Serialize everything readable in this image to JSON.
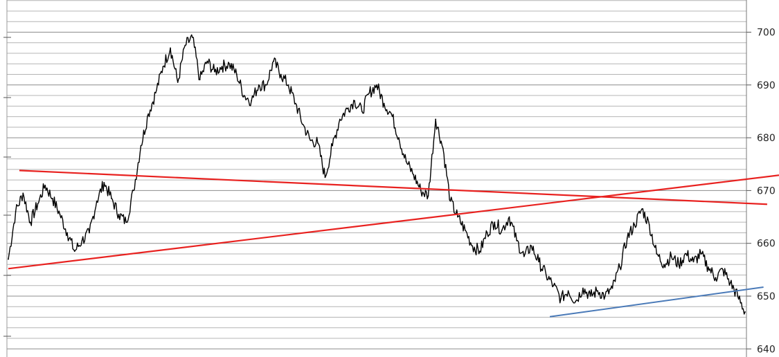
{
  "chart_data": {
    "type": "line",
    "title": "",
    "xlabel": "",
    "ylabel": "",
    "ylim": [
      640,
      706
    ],
    "y_ticks": [
      640,
      650,
      660,
      670,
      680,
      690,
      700
    ],
    "y_tick_labels": [
      "640",
      "650",
      "660",
      "670",
      "680",
      "690",
      "700"
    ],
    "grid": true,
    "legend": "none",
    "colors": {
      "price": "#000000",
      "resistance_line": "#e8211f",
      "support_line": "#e8211f",
      "trend_line": "#4a7ab8",
      "grid_major": "#8c8c8c",
      "grid_minor": "#b4b4b4"
    },
    "x_index_range": [
      0,
      100
    ],
    "series": [
      {
        "values": [
          [
            0,
            657.0
          ],
          [
            1,
            666.0
          ],
          [
            2,
            669.5
          ],
          [
            3,
            664.0
          ],
          [
            4,
            667.5
          ],
          [
            5,
            671.0
          ],
          [
            6,
            668.5
          ],
          [
            7,
            665.5
          ],
          [
            8,
            662.0
          ],
          [
            9,
            658.5
          ],
          [
            10,
            660.5
          ],
          [
            11,
            662.0
          ],
          [
            12,
            668.0
          ],
          [
            13,
            671.5
          ],
          [
            14,
            668.5
          ],
          [
            15,
            665.5
          ],
          [
            16,
            664.0
          ],
          [
            17,
            670.0
          ],
          [
            18,
            678.5
          ],
          [
            19,
            684.5
          ],
          [
            20,
            688.5
          ],
          [
            21,
            693.5
          ],
          [
            22,
            697.0
          ],
          [
            23,
            690.5
          ],
          [
            24,
            697.5
          ],
          [
            25,
            699.0
          ],
          [
            26,
            691.0
          ],
          [
            27,
            694.5
          ],
          [
            28,
            692.5
          ],
          [
            29,
            693.5
          ],
          [
            30,
            694.0
          ],
          [
            31,
            692.0
          ],
          [
            32,
            688.0
          ],
          [
            33,
            687.0
          ],
          [
            34,
            690.0
          ],
          [
            35,
            690.0
          ],
          [
            36,
            694.5
          ],
          [
            37,
            692.0
          ],
          [
            38,
            690.0
          ],
          [
            39,
            686.5
          ],
          [
            40,
            682.5
          ],
          [
            41,
            679.5
          ],
          [
            42,
            679.0
          ],
          [
            43,
            672.5
          ],
          [
            44,
            678.5
          ],
          [
            45,
            683.5
          ],
          [
            46,
            685.5
          ],
          [
            47,
            687.0
          ],
          [
            48,
            685.0
          ],
          [
            49,
            688.5
          ],
          [
            50,
            690.0
          ],
          [
            51,
            686.5
          ],
          [
            52,
            684.5
          ],
          [
            53,
            680.0
          ],
          [
            54,
            675.5
          ],
          [
            55,
            673.0
          ],
          [
            56,
            670.0
          ],
          [
            57,
            669.0
          ],
          [
            58,
            683.5
          ],
          [
            59,
            678.0
          ],
          [
            60,
            668.0
          ],
          [
            61,
            665.0
          ],
          [
            62,
            662.5
          ],
          [
            63,
            659.5
          ],
          [
            64,
            658.5
          ],
          [
            65,
            662.0
          ],
          [
            66,
            664.0
          ],
          [
            67,
            662.5
          ],
          [
            68,
            665.0
          ],
          [
            69,
            660.5
          ],
          [
            70,
            657.5
          ],
          [
            71,
            659.5
          ],
          [
            72,
            656.5
          ],
          [
            73,
            654.0
          ],
          [
            74,
            652.0
          ],
          [
            75,
            649.5
          ],
          [
            76,
            651.0
          ],
          [
            77,
            649.0
          ],
          [
            78,
            651.5
          ],
          [
            79,
            650.0
          ],
          [
            80,
            651.0
          ],
          [
            81,
            650.0
          ],
          [
            82,
            651.5
          ],
          [
            83,
            655.5
          ],
          [
            84,
            661.0
          ],
          [
            85,
            663.5
          ],
          [
            86,
            666.5
          ],
          [
            87,
            663.5
          ],
          [
            88,
            658.0
          ],
          [
            89,
            656.0
          ],
          [
            90,
            657.5
          ],
          [
            91,
            656.0
          ],
          [
            92,
            658.0
          ],
          [
            93,
            656.5
          ],
          [
            94,
            658.0
          ],
          [
            95,
            655.5
          ],
          [
            96,
            653.5
          ],
          [
            97,
            655.0
          ],
          [
            98,
            652.5
          ],
          [
            99,
            650.0
          ],
          [
            100,
            647.0
          ]
        ]
      }
    ],
    "trend_lines": [
      {
        "color": "#e8211f",
        "x": [
          1.5,
          103.0
        ],
        "y": [
          673.8,
          667.4
        ]
      },
      {
        "color": "#e8211f",
        "x": [
          0.0,
          105.0
        ],
        "y": [
          655.2,
          672.9
        ]
      },
      {
        "color": "#4a7ab8",
        "x": [
          73.5,
          102.5
        ],
        "y": [
          646.1,
          651.7
        ]
      }
    ]
  }
}
